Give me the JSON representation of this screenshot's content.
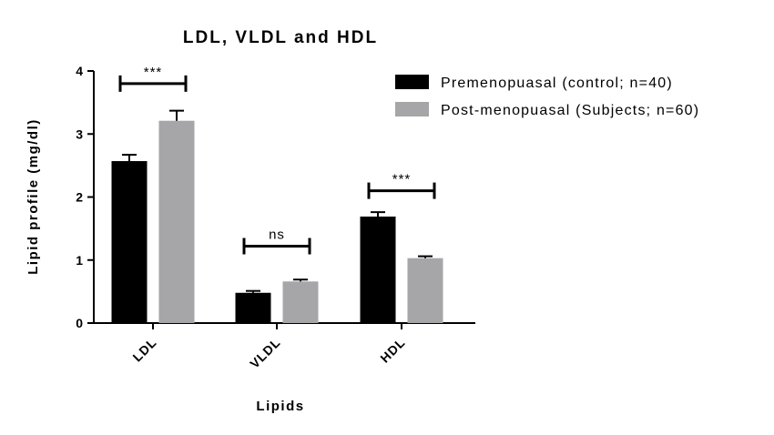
{
  "chart_data": {
    "type": "bar",
    "title": "LDL, VLDL and HDL",
    "xlabel": "Lipids",
    "ylabel": "Lipid profile (mg/dl)",
    "categories": [
      "LDL",
      "VLDL",
      "HDL"
    ],
    "ylim": [
      0,
      4
    ],
    "yticks": [
      "0",
      "1",
      "2",
      "3",
      "4"
    ],
    "series": [
      {
        "name": "Premenopuasal (control; n=40)",
        "color": "#000000",
        "values": [
          2.57,
          0.48,
          1.69
        ],
        "errors": [
          0.1,
          0.03,
          0.07
        ]
      },
      {
        "name": "Post-menopuasal (Subjects; n=60)",
        "color": "#a6a6a8",
        "values": [
          3.21,
          0.66,
          1.03
        ],
        "errors": [
          0.16,
          0.03,
          0.03
        ]
      }
    ],
    "significance": [
      {
        "category": "LDL",
        "label": "***",
        "level": 3.8
      },
      {
        "category": "VLDL",
        "label": "ns",
        "level": 1.22
      },
      {
        "category": "HDL",
        "label": "***",
        "level": 2.1
      }
    ],
    "legend_position": "top-right",
    "grid": false,
    "error_bars": true
  }
}
